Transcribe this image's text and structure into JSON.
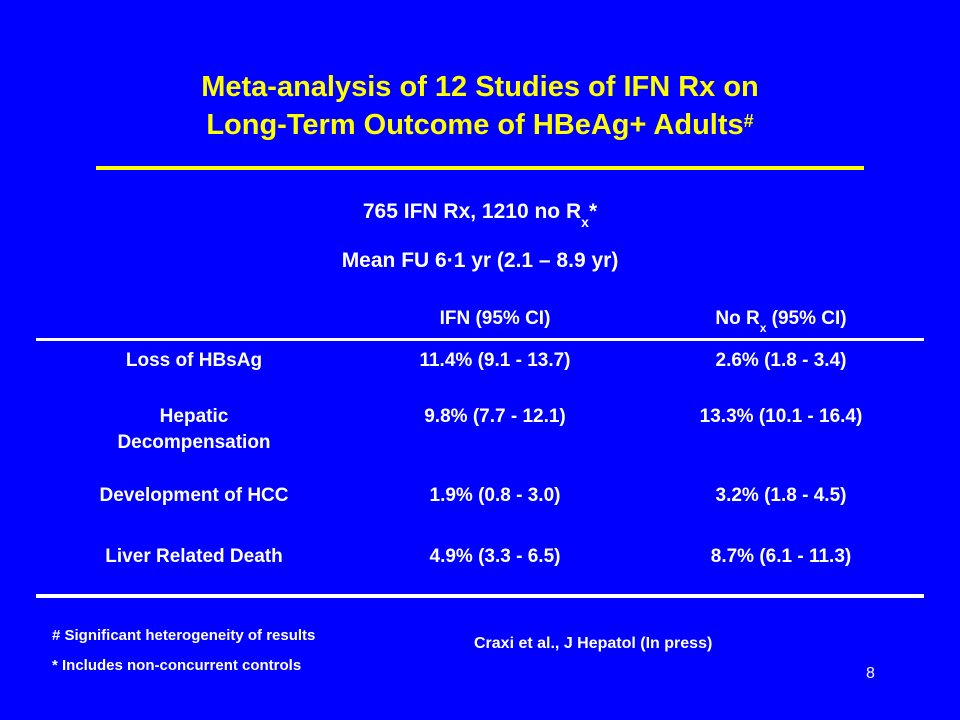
{
  "slide": {
    "title_line1": "Meta-analysis of 12 Studies of IFN Rx on",
    "title_line2": "Long-Term Outcome of HBeAg+ Adults",
    "title_mark": "#",
    "subline1_pre": "765 IFN Rx, 1210 no R",
    "subline1_sub": "x",
    "subline1_post": "*",
    "subline2": "Mean FU 6·1 yr (2.1 – 8.9 yr)",
    "colors": {
      "background": "#0000ff",
      "title": "#ffff00",
      "text": "#ffffff"
    }
  },
  "table": {
    "headers": {
      "col1": "IFN (95% CI)",
      "col2_pre": "No R",
      "col2_sub": "x",
      "col2_post": " (95% CI)"
    },
    "rows": [
      {
        "label": "Loss of HBsAg",
        "ifn": "11.4% (9.1 - 13.7)",
        "no_rx": "2.6% (1.8 - 3.4)"
      },
      {
        "label": "Hepatic Decompensation",
        "ifn": "9.8% (7.7 - 12.1)",
        "no_rx": "13.3% (10.1 - 16.4)"
      },
      {
        "label": "Development of HCC",
        "ifn": "1.9% (0.8 - 3.0)",
        "no_rx": "3.2% (1.8 - 4.5)"
      },
      {
        "label": "Liver Related Death",
        "ifn": "4.9% (3.3 - 6.5)",
        "no_rx": "8.7% (6.1 - 11.3)"
      }
    ]
  },
  "footnotes": {
    "note1": "# Significant heterogeneity of results",
    "note2": "* Includes non-concurrent controls",
    "citation": "Craxi et al., J Hepatol (In press)"
  },
  "page_number": "8"
}
